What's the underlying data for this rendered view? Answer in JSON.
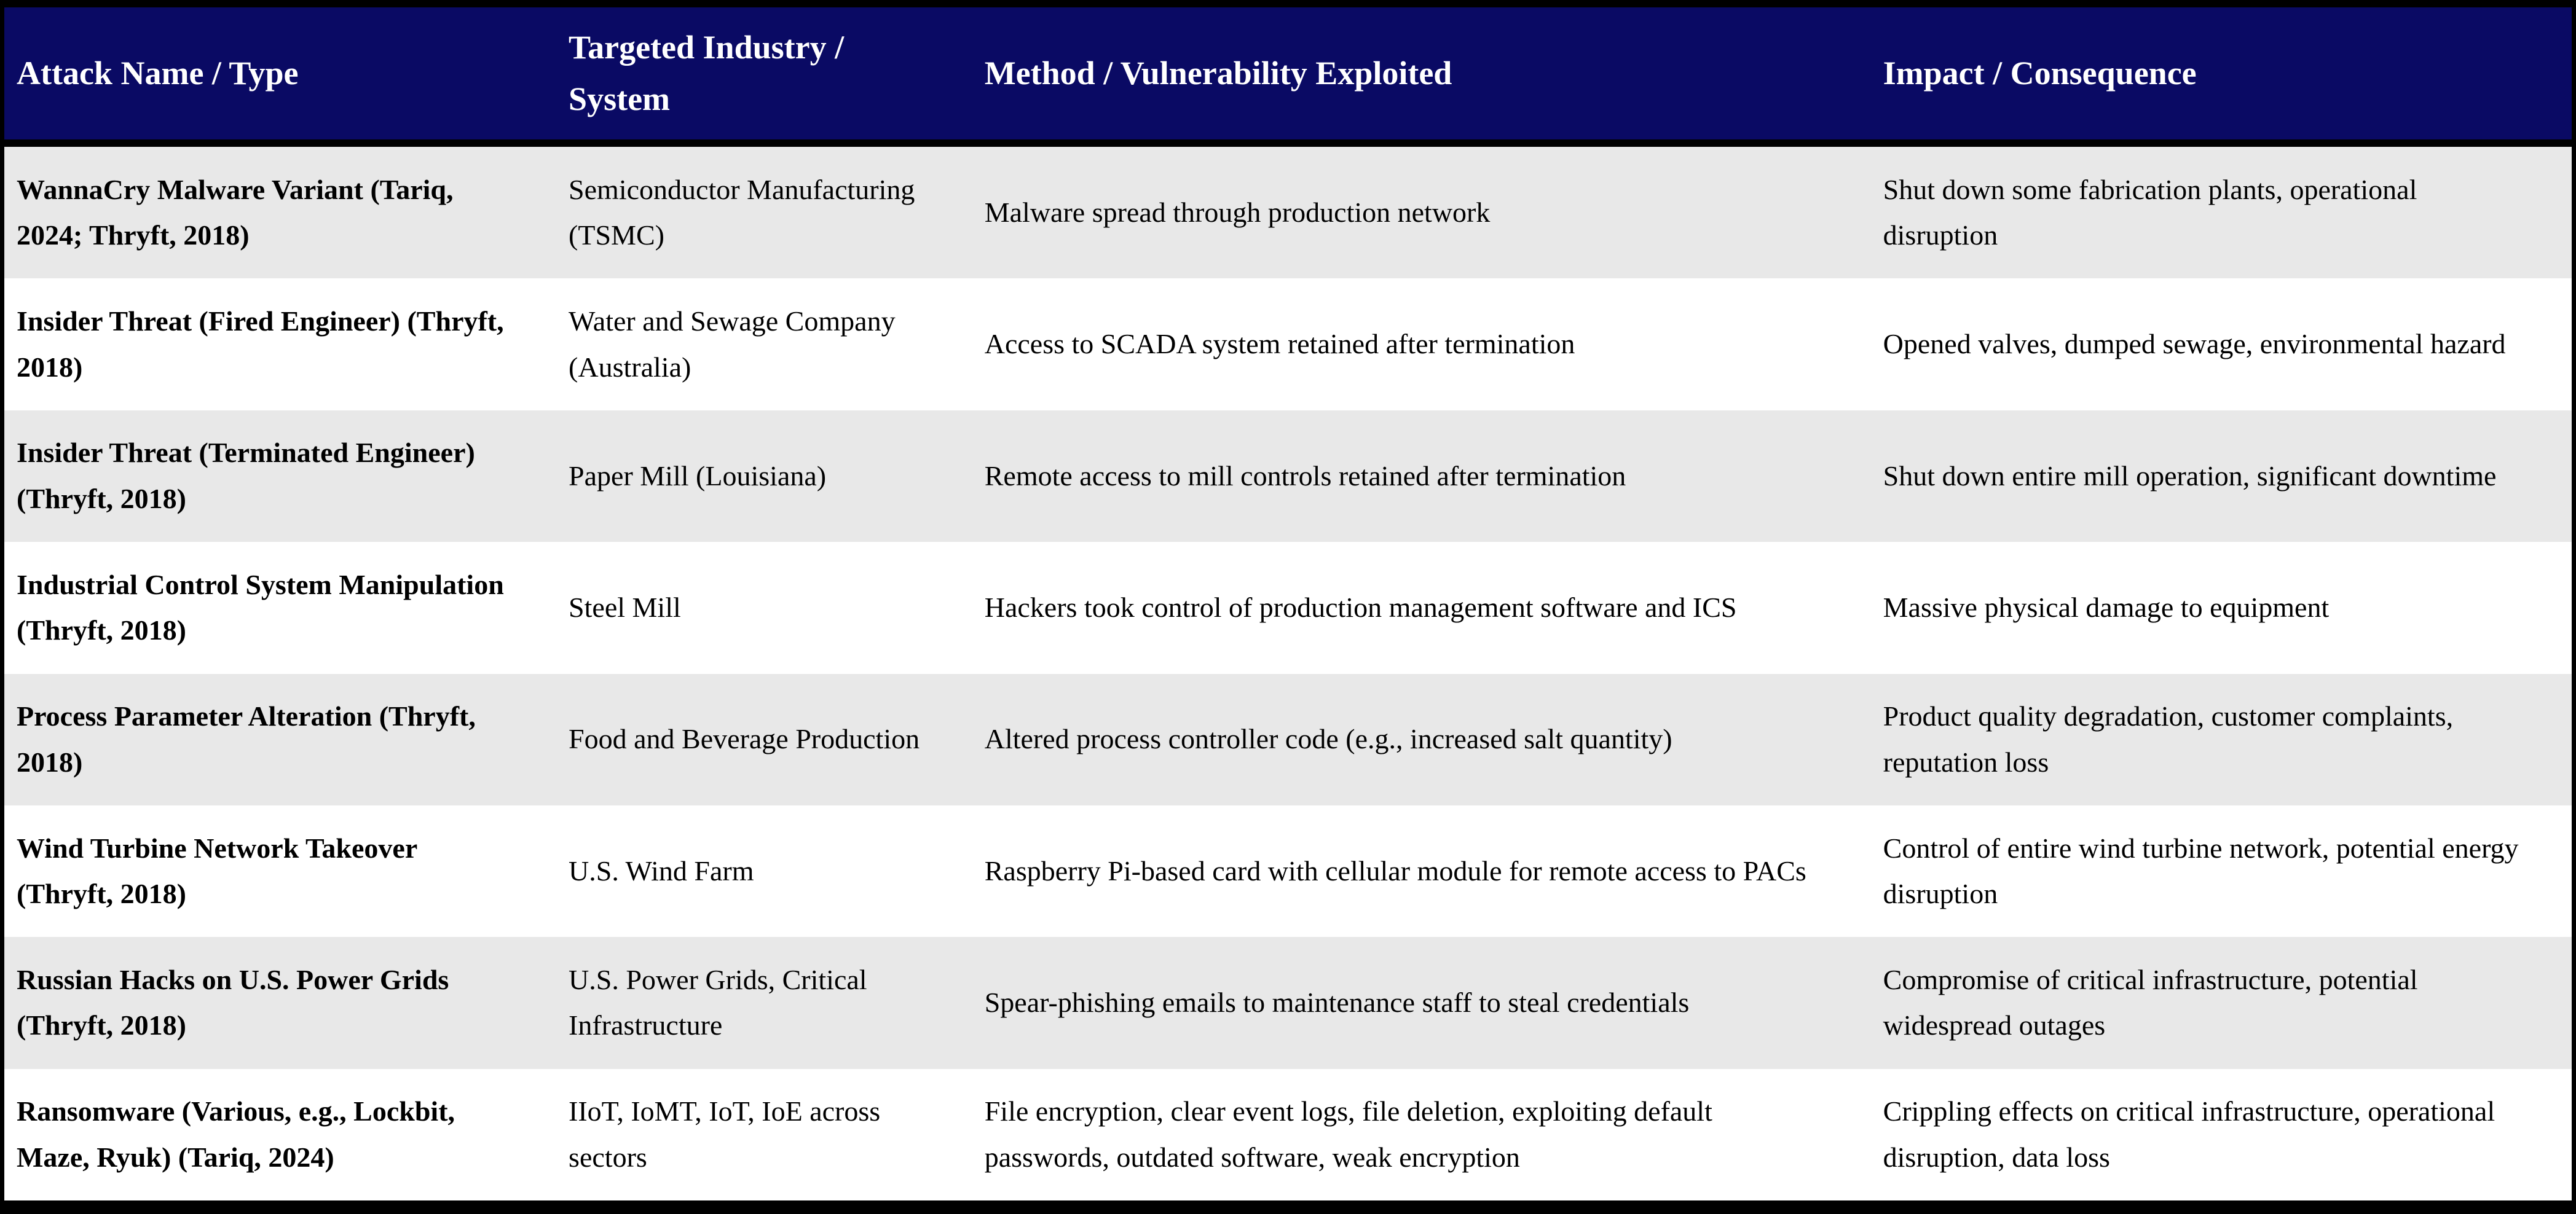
{
  "table": {
    "columns": [
      "Attack Name / Type",
      "Targeted Industry / System",
      "Method / Vulnerability Exploited",
      "Impact / Consequence"
    ],
    "rows": [
      {
        "attack": "WannaCry Malware Variant (Tariq, 2024; Thryft, 2018)",
        "industry": "Semiconductor Manufacturing (TSMC)",
        "method": "Malware spread through production network",
        "impact": "Shut down some fabrication plants, operational disruption"
      },
      {
        "attack": "Insider Threat (Fired Engineer) (Thryft, 2018)",
        "industry": "Water and Sewage Company (Australia)",
        "method": "Access to SCADA system retained after termination",
        "impact": "Opened valves, dumped sewage, environmental hazard"
      },
      {
        "attack": "Insider Threat (Terminated Engineer) (Thryft, 2018)",
        "industry": "Paper Mill (Louisiana)",
        "method": "Remote access to mill controls retained after termination",
        "impact": "Shut down entire mill operation, significant downtime"
      },
      {
        "attack": "Industrial Control System Manipulation (Thryft, 2018)",
        "industry": "Steel Mill",
        "method": "Hackers took control of production management software and ICS",
        "impact": "Massive physical damage to equipment"
      },
      {
        "attack": "Process Parameter Alteration (Thryft, 2018)",
        "industry": "Food and Beverage Production",
        "method": "Altered process controller code (e.g., increased salt quantity)",
        "impact": "Product quality degradation, customer complaints, reputation loss"
      },
      {
        "attack": "Wind Turbine Network Takeover (Thryft, 2018)",
        "industry": "U.S. Wind Farm",
        "method": "Raspberry Pi-based card with cellular module for remote access to PACs",
        "impact": "Control of entire wind turbine network, potential energy disruption"
      },
      {
        "attack": "Russian Hacks on U.S. Power Grids (Thryft, 2018)",
        "industry": "U.S. Power Grids, Critical Infrastructure",
        "method": "Spear-phishing emails to maintenance staff to steal credentials",
        "impact": "Compromise of critical infrastructure, potential widespread outages"
      },
      {
        "attack": "Ransomware (Various, e.g., Lockbit, Maze, Ryuk) (Tariq, 2024)",
        "industry": "IIoT, IoMT, IoT, IoE across sectors",
        "method": "File encryption, clear event logs, file deletion, exploiting default passwords, outdated software, weak encryption",
        "impact": "Crippling effects on critical infrastructure, operational disruption, data loss"
      }
    ],
    "colors": {
      "header_bg": "#0a0a64",
      "header_text": "#ffffff",
      "row_alt_bg": "#e8e8e8",
      "row_bg": "#ffffff",
      "border": "#000000",
      "body_text": "#000000"
    }
  }
}
